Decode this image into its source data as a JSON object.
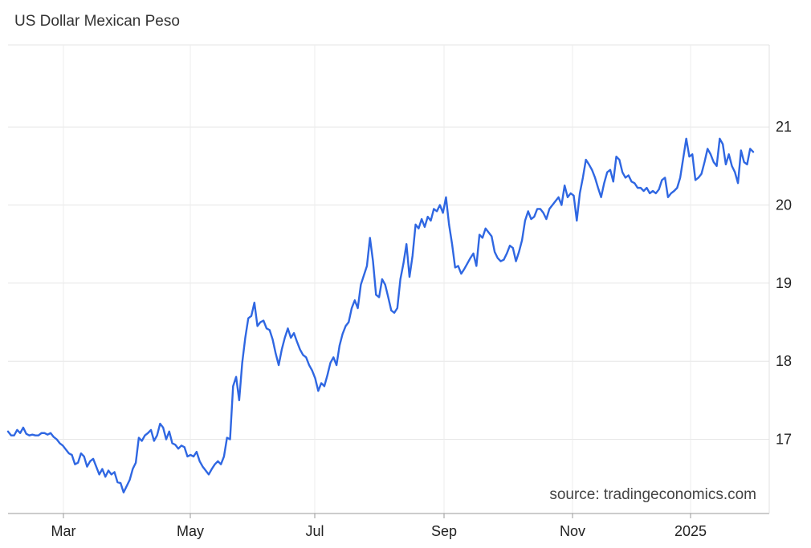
{
  "chart_data": {
    "type": "line",
    "title": "US Dollar Mexican Peso",
    "source": "source: tradingeconomics.com",
    "xlabel": "",
    "ylabel": "",
    "x_ticks": [
      "Mar",
      "May",
      "Jul",
      "Sep",
      "Nov",
      "2025"
    ],
    "y_ticks": [
      "17",
      "18",
      "19",
      "20",
      "21"
    ],
    "ylim": [
      16.05,
      22.05
    ],
    "grid": true,
    "series": [
      {
        "color": "#2f67e2",
        "values": [
          17.1,
          17.05,
          17.05,
          17.12,
          17.08,
          17.15,
          17.07,
          17.05,
          17.06,
          17.05,
          17.05,
          17.08,
          17.08,
          17.06,
          17.08,
          17.03,
          17.0,
          16.95,
          16.92,
          16.87,
          16.82,
          16.8,
          16.68,
          16.7,
          16.82,
          16.78,
          16.65,
          16.72,
          16.75,
          16.65,
          16.55,
          16.62,
          16.52,
          16.6,
          16.55,
          16.58,
          16.45,
          16.44,
          16.32,
          16.4,
          16.48,
          16.62,
          16.7,
          17.02,
          16.98,
          17.05,
          17.08,
          17.12,
          16.98,
          17.05,
          17.2,
          17.15,
          17.0,
          17.1,
          16.95,
          16.93,
          16.88,
          16.92,
          16.9,
          16.78,
          16.8,
          16.78,
          16.84,
          16.72,
          16.65,
          16.6,
          16.55,
          16.62,
          16.68,
          16.72,
          16.68,
          16.78,
          17.02,
          17.0,
          17.68,
          17.8,
          17.5,
          17.98,
          18.3,
          18.55,
          18.58,
          18.75,
          18.45,
          18.5,
          18.52,
          18.42,
          18.4,
          18.28,
          18.1,
          17.95,
          18.15,
          18.3,
          18.42,
          18.3,
          18.36,
          18.25,
          18.15,
          18.08,
          18.05,
          17.95,
          17.88,
          17.78,
          17.62,
          17.72,
          17.68,
          17.82,
          17.98,
          18.05,
          17.95,
          18.2,
          18.35,
          18.45,
          18.5,
          18.68,
          18.78,
          18.68,
          18.98,
          19.1,
          19.22,
          19.58,
          19.28,
          18.85,
          18.82,
          19.05,
          18.98,
          18.82,
          18.65,
          18.62,
          18.68,
          19.05,
          19.25,
          19.5,
          19.08,
          19.35,
          19.75,
          19.7,
          19.82,
          19.72,
          19.85,
          19.8,
          19.95,
          19.92,
          20.0,
          19.9,
          20.1,
          19.75,
          19.5,
          19.2,
          19.22,
          19.12,
          19.18,
          19.25,
          19.32,
          19.38,
          19.22,
          19.62,
          19.58,
          19.7,
          19.65,
          19.6,
          19.4,
          19.32,
          19.28,
          19.3,
          19.38,
          19.48,
          19.45,
          19.28,
          19.4,
          19.55,
          19.8,
          19.92,
          19.82,
          19.85,
          19.95,
          19.95,
          19.9,
          19.82,
          19.95,
          20.0,
          20.05,
          20.1,
          20.0,
          20.25,
          20.1,
          20.15,
          20.12,
          19.8,
          20.15,
          20.35,
          20.58,
          20.52,
          20.45,
          20.35,
          20.22,
          20.1,
          20.28,
          20.42,
          20.45,
          20.3,
          20.62,
          20.58,
          20.42,
          20.35,
          20.38,
          20.3,
          20.28,
          20.22,
          20.22,
          20.18,
          20.22,
          20.15,
          20.18,
          20.15,
          20.2,
          20.32,
          20.35,
          20.1,
          20.15,
          20.18,
          20.22,
          20.35,
          20.6,
          20.85,
          20.62,
          20.65,
          20.32,
          20.35,
          20.4,
          20.55,
          20.72,
          20.65,
          20.55,
          20.5,
          20.85,
          20.78,
          20.52,
          20.65,
          20.5,
          20.42,
          20.28,
          20.7,
          20.55,
          20.52,
          20.72,
          20.68
        ]
      }
    ]
  }
}
